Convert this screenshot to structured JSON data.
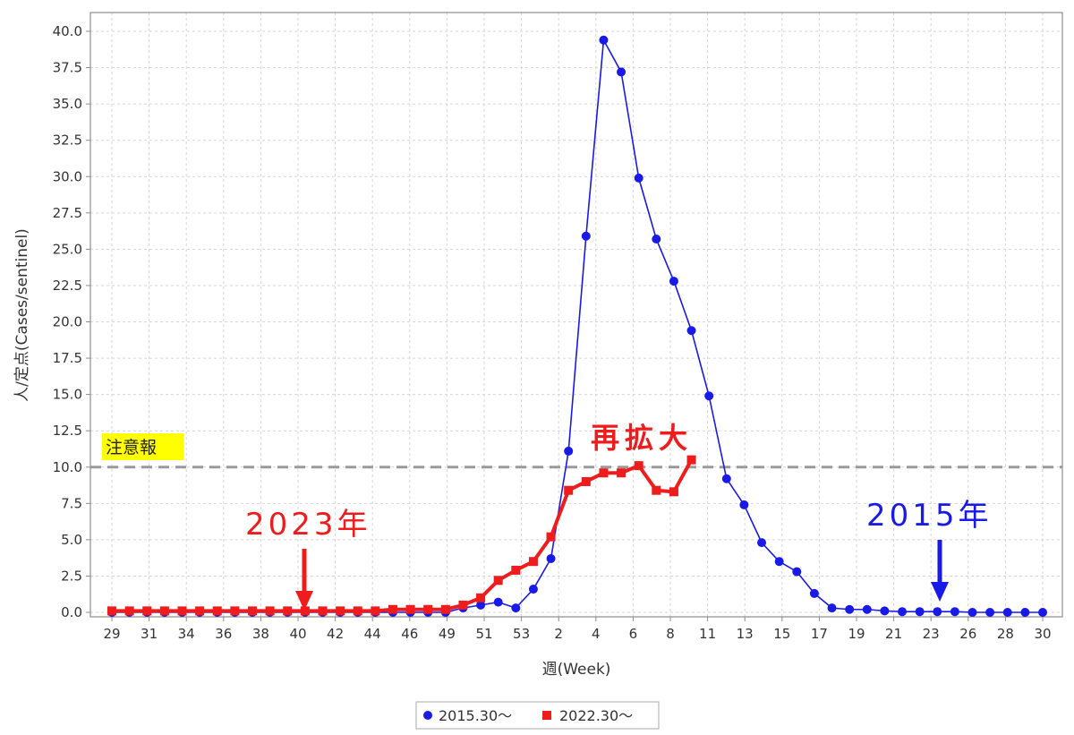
{
  "chart_data": {
    "type": "line",
    "title": "",
    "xlabel": "週(Week)",
    "ylabel": "人/定点(Cases/sentinel)",
    "ylim": [
      0,
      40
    ],
    "yticks": [
      "0.0",
      "2.5",
      "5.0",
      "7.5",
      "10.0",
      "12.5",
      "15.0",
      "17.5",
      "20.0",
      "22.5",
      "25.0",
      "27.5",
      "30.0",
      "32.5",
      "35.0",
      "37.5",
      "40.0"
    ],
    "xtick_labels": [
      "29",
      "31",
      "34",
      "36",
      "38",
      "40",
      "42",
      "44",
      "46",
      "49",
      "51",
      "53",
      "2",
      "4",
      "6",
      "8",
      "11",
      "13",
      "15",
      "17",
      "19",
      "21",
      "23",
      "26",
      "28",
      "30"
    ],
    "x_positions": 54,
    "grid": true,
    "legend_position": "bottom",
    "threshold": {
      "label": "注意報",
      "value": 10.0
    },
    "series": [
      {
        "name": "2015.30～",
        "color": "#1a1ae8",
        "marker": "circle",
        "values": [
          0,
          0,
          0,
          0,
          0,
          0,
          0,
          0,
          0,
          0,
          0,
          0,
          0,
          0,
          0,
          0,
          0,
          0,
          0,
          0,
          0.3,
          0.5,
          0.7,
          0.3,
          1.6,
          3.7,
          11.1,
          25.9,
          39.4,
          37.2,
          29.9,
          25.7,
          22.8,
          19.4,
          14.9,
          9.2,
          7.4,
          4.8,
          3.5,
          2.8,
          1.3,
          0.3,
          0.2,
          0.2,
          0.1,
          0.05,
          0.05,
          0.05,
          0.05,
          0,
          0,
          0,
          0,
          0
        ]
      },
      {
        "name": "2022.30～",
        "color": "#ee1c1c",
        "marker": "square",
        "values": [
          0.1,
          0.1,
          0.1,
          0.1,
          0.1,
          0.1,
          0.1,
          0.1,
          0.1,
          0.1,
          0.1,
          0.1,
          0.1,
          0.1,
          0.1,
          0.1,
          0.2,
          0.2,
          0.2,
          0.2,
          0.5,
          1.0,
          2.2,
          2.9,
          3.5,
          5.2,
          8.4,
          9.0,
          9.6,
          9.6,
          10.1,
          8.4,
          8.3,
          10.5
        ]
      }
    ]
  },
  "annotations": {
    "reexpand": "再拡大",
    "year_red": "2023年",
    "year_blue": "2015年"
  }
}
